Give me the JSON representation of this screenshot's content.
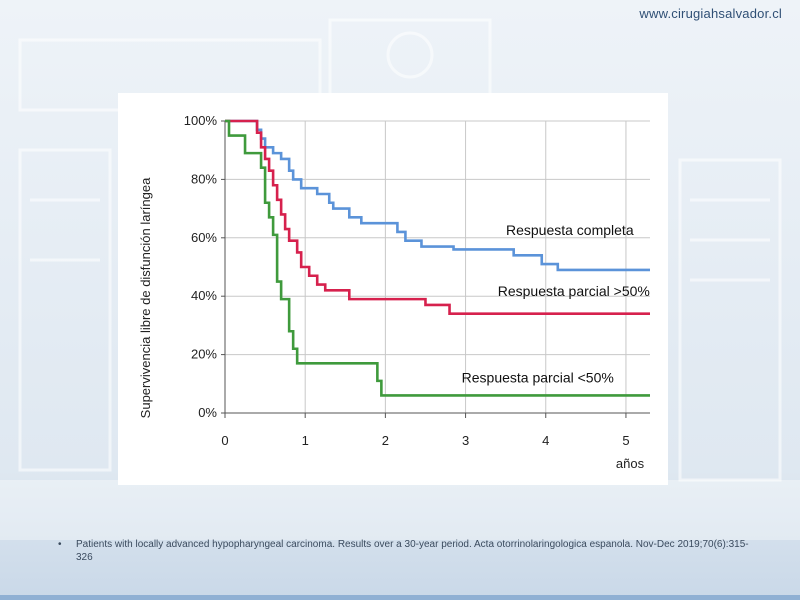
{
  "site": {
    "url": "www.cirugiahsalvador.cl"
  },
  "footnote": {
    "bullet": "•",
    "text": "Patients with locally advanced hypopharyngeal carcinoma. Results over a 30-year period. Acta otorrinolaringologica espanola. Nov-Dec 2019;70(6):315-326"
  },
  "chart_data": {
    "type": "line",
    "title": "",
    "xlabel": "años",
    "ylabel": "Supervivencia libre de disfunción laríngea",
    "xlim": [
      0,
      5.3
    ],
    "ylim": [
      0,
      100
    ],
    "x_ticks": [
      "0",
      "1",
      "2",
      "3",
      "4",
      "5"
    ],
    "y_ticks": [
      "0%",
      "20%",
      "40%",
      "60%",
      "80%",
      "100%"
    ],
    "grid": true,
    "step": true,
    "series": [
      {
        "name": "Respuesta completa",
        "color": "#5b93d9",
        "points": [
          [
            0,
            100
          ],
          [
            0.35,
            100
          ],
          [
            0.4,
            97
          ],
          [
            0.45,
            94
          ],
          [
            0.5,
            91
          ],
          [
            0.6,
            89
          ],
          [
            0.7,
            87
          ],
          [
            0.8,
            83
          ],
          [
            0.85,
            80
          ],
          [
            0.95,
            77
          ],
          [
            1.15,
            75
          ],
          [
            1.3,
            72
          ],
          [
            1.35,
            70
          ],
          [
            1.55,
            67
          ],
          [
            1.7,
            65
          ],
          [
            2.15,
            62
          ],
          [
            2.25,
            59
          ],
          [
            2.45,
            57
          ],
          [
            2.85,
            56
          ],
          [
            3.6,
            54
          ],
          [
            3.95,
            51
          ],
          [
            4.15,
            49
          ],
          [
            5.3,
            49
          ]
        ]
      },
      {
        "name": "Respuesta parcial >50%",
        "color": "#d6214d",
        "points": [
          [
            0,
            100
          ],
          [
            0.35,
            100
          ],
          [
            0.4,
            96
          ],
          [
            0.45,
            91
          ],
          [
            0.5,
            87
          ],
          [
            0.55,
            83
          ],
          [
            0.6,
            78
          ],
          [
            0.65,
            73
          ],
          [
            0.7,
            68
          ],
          [
            0.75,
            63
          ],
          [
            0.8,
            59
          ],
          [
            0.9,
            55
          ],
          [
            0.95,
            50
          ],
          [
            1.05,
            47
          ],
          [
            1.15,
            44
          ],
          [
            1.25,
            42
          ],
          [
            1.55,
            39
          ],
          [
            2.5,
            37
          ],
          [
            2.8,
            34
          ],
          [
            5.3,
            34
          ]
        ]
      },
      {
        "name": "Respuesta parcial <50%",
        "color": "#3f9a3c",
        "points": [
          [
            0,
            100
          ],
          [
            0.05,
            95
          ],
          [
            0.25,
            89
          ],
          [
            0.45,
            84
          ],
          [
            0.5,
            72
          ],
          [
            0.55,
            67
          ],
          [
            0.6,
            61
          ],
          [
            0.65,
            45
          ],
          [
            0.7,
            39
          ],
          [
            0.8,
            28
          ],
          [
            0.85,
            22
          ],
          [
            0.9,
            17
          ],
          [
            1.9,
            11
          ],
          [
            1.95,
            6
          ],
          [
            5.3,
            6
          ]
        ]
      }
    ],
    "labels": [
      {
        "text": "Respuesta completa",
        "x": 4.3,
        "y": 61,
        "anchor": "middle"
      },
      {
        "text": "Respuesta parcial >50%",
        "x": 4.35,
        "y": 40,
        "anchor": "middle"
      },
      {
        "text": "Respuesta parcial <50%",
        "x": 3.9,
        "y": 10.5,
        "anchor": "middle"
      }
    ]
  }
}
